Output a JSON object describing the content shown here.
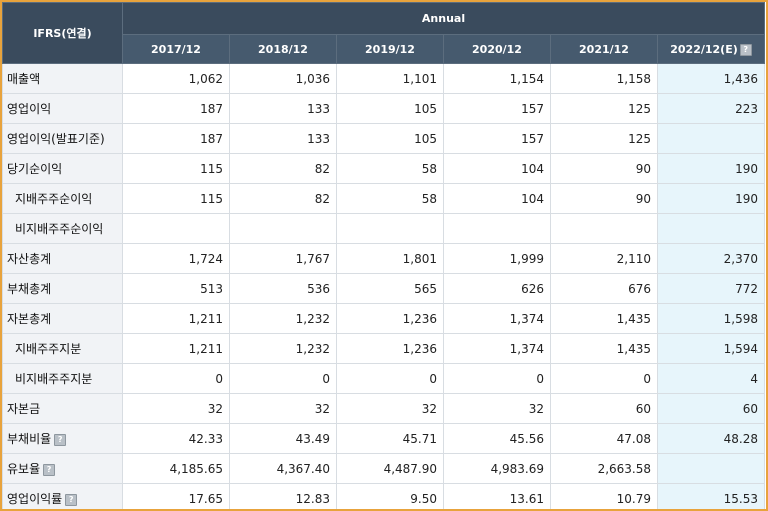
{
  "header": {
    "ifrs_label": "IFRS(연결)",
    "annual_label": "Annual",
    "years": [
      "2017/12",
      "2018/12",
      "2019/12",
      "2020/12",
      "2021/12",
      "2022/12(E)"
    ],
    "help_glyph": "?",
    "help_icon": "question-mark-icon"
  },
  "rows": [
    {
      "label": "매출액",
      "indent": false,
      "help": false,
      "values": [
        "1,062",
        "1,036",
        "1,101",
        "1,154",
        "1,158",
        "1,436"
      ]
    },
    {
      "label": "영업이익",
      "indent": false,
      "help": false,
      "values": [
        "187",
        "133",
        "105",
        "157",
        "125",
        "223"
      ]
    },
    {
      "label": "영업이익(발표기준)",
      "indent": false,
      "help": false,
      "values": [
        "187",
        "133",
        "105",
        "157",
        "125",
        ""
      ]
    },
    {
      "label": "당기순이익",
      "indent": false,
      "help": false,
      "values": [
        "115",
        "82",
        "58",
        "104",
        "90",
        "190"
      ]
    },
    {
      "label": "지배주주순이익",
      "indent": true,
      "help": false,
      "values": [
        "115",
        "82",
        "58",
        "104",
        "90",
        "190"
      ]
    },
    {
      "label": "비지배주주순이익",
      "indent": true,
      "help": false,
      "values": [
        "",
        "",
        "",
        "",
        "",
        ""
      ]
    },
    {
      "label": "자산총계",
      "indent": false,
      "help": false,
      "values": [
        "1,724",
        "1,767",
        "1,801",
        "1,999",
        "2,110",
        "2,370"
      ]
    },
    {
      "label": "부채총계",
      "indent": false,
      "help": false,
      "values": [
        "513",
        "536",
        "565",
        "626",
        "676",
        "772"
      ]
    },
    {
      "label": "자본총계",
      "indent": false,
      "help": false,
      "values": [
        "1,211",
        "1,232",
        "1,236",
        "1,374",
        "1,435",
        "1,598"
      ]
    },
    {
      "label": "지배주주지분",
      "indent": true,
      "help": false,
      "values": [
        "1,211",
        "1,232",
        "1,236",
        "1,374",
        "1,435",
        "1,594"
      ]
    },
    {
      "label": "비지배주주지분",
      "indent": true,
      "help": false,
      "values": [
        "0",
        "0",
        "0",
        "0",
        "0",
        "4"
      ]
    },
    {
      "label": "자본금",
      "indent": false,
      "help": false,
      "values": [
        "32",
        "32",
        "32",
        "32",
        "60",
        "60"
      ]
    },
    {
      "label": "부채비율",
      "indent": false,
      "help": true,
      "values": [
        "42.33",
        "43.49",
        "45.71",
        "45.56",
        "47.08",
        "48.28"
      ]
    },
    {
      "label": "유보율",
      "indent": false,
      "help": true,
      "values": [
        "4,185.65",
        "4,367.40",
        "4,487.90",
        "4,983.69",
        "2,663.58",
        ""
      ]
    },
    {
      "label": "영업이익률",
      "indent": false,
      "help": true,
      "values": [
        "17.65",
        "12.83",
        "9.50",
        "13.61",
        "10.79",
        "15.53"
      ]
    }
  ],
  "colors": {
    "header_bg": "#3a4b5d",
    "label_bg": "#f1f3f6",
    "estimate_bg": "#e7f5fb",
    "frame_border": "#e8a33c"
  }
}
